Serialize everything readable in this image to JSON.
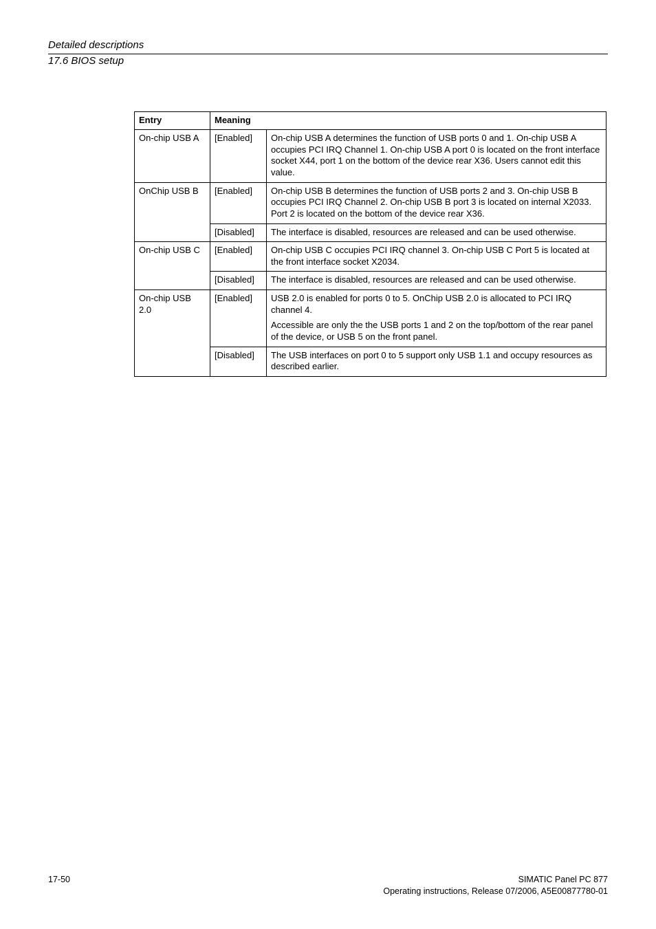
{
  "header": {
    "title": "Detailed descriptions",
    "subtitle": "17.6 BIOS setup"
  },
  "table": {
    "col_headers": {
      "entry": "Entry",
      "meaning": "Meaning"
    },
    "rows": [
      {
        "entry": "On-chip USB A",
        "cells": [
          {
            "setting": "[Enabled]",
            "desc": "On-chip USB A determines the function of USB ports 0 and 1. On-chip USB A occupies PCI IRQ Channel 1. On-chip USB A port 0 is located on the front interface socket X44, port 1 on the bottom of the device rear X36. Users cannot edit this value."
          }
        ],
        "rowspan": 1
      },
      {
        "entry": "OnChip USB B",
        "cells": [
          {
            "setting": "[Enabled]",
            "desc": "On-chip USB B determines the function of USB ports 2 and 3. On-chip USB B occupies PCI IRQ Channel 2. On-chip USB B port 3 is located on internal X2033. Port 2 is located on the bottom of the device rear X36."
          },
          {
            "setting": "[Disabled]",
            "desc": "The interface is disabled, resources are released and can be used otherwise."
          }
        ],
        "rowspan": 2
      },
      {
        "entry": "On-chip USB C",
        "cells": [
          {
            "setting": "[Enabled]",
            "desc": "On-chip USB C occupies PCI IRQ channel 3. On-chip USB C Port 5 is located at the front interface socket X2034."
          },
          {
            "setting": "[Disabled]",
            "desc": "The interface is disabled, resources are released and can be used otherwise."
          }
        ],
        "rowspan": 2
      },
      {
        "entry": "On-chip USB 2.0",
        "cells": [
          {
            "setting": "[Enabled]",
            "desc": "USB 2.0 is enabled for ports 0 to 5. OnChip USB 2.0 is allocated to PCI IRQ channel 4.",
            "desc2": "Accessible are only the the USB ports 1 and 2 on the top/bottom of the rear panel of the device, or USB 5 on the front panel."
          },
          {
            "setting": "[Disabled]",
            "desc": "The USB interfaces on port 0 to 5 support only USB 1.1 and occupy resources as described earlier."
          }
        ],
        "rowspan": 2
      }
    ]
  },
  "footer": {
    "page": "17-50",
    "line1": "SIMATIC Panel PC 877",
    "line2": "Operating instructions, Release 07/2006, A5E00877780-01"
  }
}
